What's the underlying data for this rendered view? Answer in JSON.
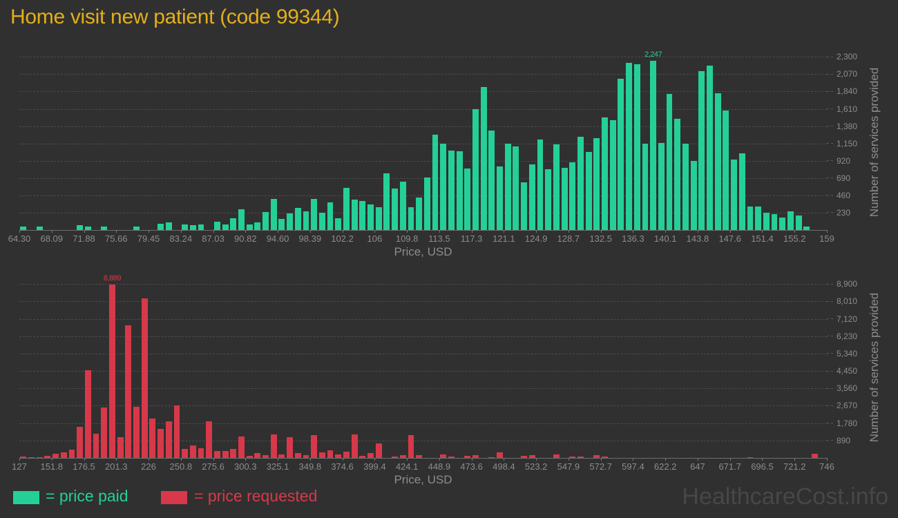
{
  "title": "Home visit new patient (code 99344)",
  "watermark": "HealthcareCost.info",
  "legend": {
    "paid_label": "= price paid",
    "requested_label": "= price requested"
  },
  "colors": {
    "background": "#303030",
    "title": "#e3af1a",
    "paid": "#24d098",
    "requested": "#d7394a",
    "axis_text": "#8d8d8d",
    "gridline": "#4c4c4c",
    "watermark": "#474747"
  },
  "chart_data": [
    {
      "type": "bar",
      "name": "price-paid",
      "legend_entry": "= price paid",
      "color_key": "paid",
      "xlabel": "Price, USD",
      "ylabel": "Number of services provided",
      "grid": true,
      "legend_position": "bottom-left",
      "x_range": [
        64.3,
        159
      ],
      "bin_width": 0.947,
      "ylim": [
        0,
        2340
      ],
      "x_ticks": [
        "64.30",
        "68.09",
        "71.88",
        "75.66",
        "79.45",
        "83.24",
        "87.03",
        "90.82",
        "94.60",
        "98.39",
        "102.2",
        "106",
        "109.8",
        "113.5",
        "117.3",
        "121.1",
        "124.9",
        "128.7",
        "132.5",
        "136.3",
        "140.1",
        "143.8",
        "147.6",
        "151.4",
        "155.2",
        "159"
      ],
      "y_ticks": [
        230,
        460,
        690,
        920,
        1150,
        1380,
        1610,
        1840,
        2070,
        2300
      ],
      "y_tick_labels": [
        "230",
        "460",
        "690",
        "920",
        "1,150",
        "1,380",
        "1,610",
        "1,840",
        "2,070",
        "2,300"
      ],
      "values": [
        50,
        0,
        50,
        0,
        0,
        0,
        0,
        60,
        50,
        0,
        50,
        0,
        0,
        0,
        50,
        0,
        0,
        80,
        100,
        0,
        70,
        60,
        70,
        0,
        110,
        70,
        160,
        280,
        70,
        100,
        240,
        410,
        150,
        220,
        290,
        250,
        410,
        230,
        370,
        160,
        560,
        400,
        390,
        340,
        300,
        750,
        550,
        640,
        300,
        430,
        700,
        1270,
        1150,
        1060,
        1050,
        820,
        1610,
        1900,
        1320,
        840,
        1150,
        1110,
        630,
        875,
        1200,
        810,
        1140,
        830,
        900,
        1240,
        1040,
        1220,
        1500,
        1460,
        2010,
        2220,
        2200,
        1150,
        2247,
        1160,
        1810,
        1480,
        1150,
        920,
        2110,
        2180,
        1820,
        1590,
        940,
        1020,
        310,
        315,
        230,
        210,
        165,
        250,
        190,
        45,
        0,
        0
      ],
      "peak": {
        "label": "2,247",
        "bin": 78,
        "value": 2247
      }
    },
    {
      "type": "bar",
      "name": "price-requested",
      "legend_entry": "= price requested",
      "color_key": "requested",
      "xlabel": "Price, USD",
      "ylabel": "Number of services provided",
      "grid": true,
      "legend_position": "bottom-left",
      "x_range": [
        127,
        746
      ],
      "bin_width": 6.19,
      "ylim": [
        0,
        9300
      ],
      "x_ticks": [
        "127",
        "151.8",
        "176.5",
        "201.3",
        "226",
        "250.8",
        "275.6",
        "300.3",
        "325.1",
        "349.8",
        "374.6",
        "399.4",
        "424.1",
        "448.9",
        "473.6",
        "498.4",
        "523.2",
        "547.9",
        "572.7",
        "597.4",
        "622.2",
        "647",
        "671.7",
        "696.5",
        "721.2",
        "746"
      ],
      "y_ticks": [
        890,
        1780,
        2670,
        3560,
        4450,
        5340,
        6230,
        7120,
        8010,
        8900
      ],
      "y_tick_labels": [
        "890",
        "1,780",
        "2,670",
        "3,560",
        "4,450",
        "5,340",
        "6,230",
        "7,120",
        "8,010",
        "8,900"
      ],
      "values": [
        85,
        50,
        50,
        95,
        200,
        270,
        430,
        1600,
        4500,
        1230,
        2570,
        8889,
        1060,
        6790,
        2630,
        8180,
        2010,
        1500,
        1890,
        2680,
        450,
        630,
        500,
        1860,
        370,
        370,
        450,
        1100,
        110,
        260,
        140,
        1210,
        170,
        1070,
        240,
        140,
        1180,
        300,
        380,
        180,
        330,
        1210,
        95,
        260,
        750,
        0,
        70,
        140,
        1160,
        130,
        0,
        0,
        190,
        85,
        0,
        110,
        130,
        0,
        50,
        300,
        0,
        0,
        110,
        130,
        0,
        0,
        190,
        0,
        60,
        60,
        0,
        130,
        60,
        0,
        0,
        0,
        0,
        0,
        0,
        0,
        0,
        0,
        0,
        0,
        0,
        0,
        0,
        0,
        0,
        0,
        40,
        0,
        0,
        0,
        0,
        0,
        0,
        0,
        200,
        0
      ],
      "peak": {
        "label": "8,889",
        "bin": 11,
        "value": 8889
      }
    }
  ]
}
